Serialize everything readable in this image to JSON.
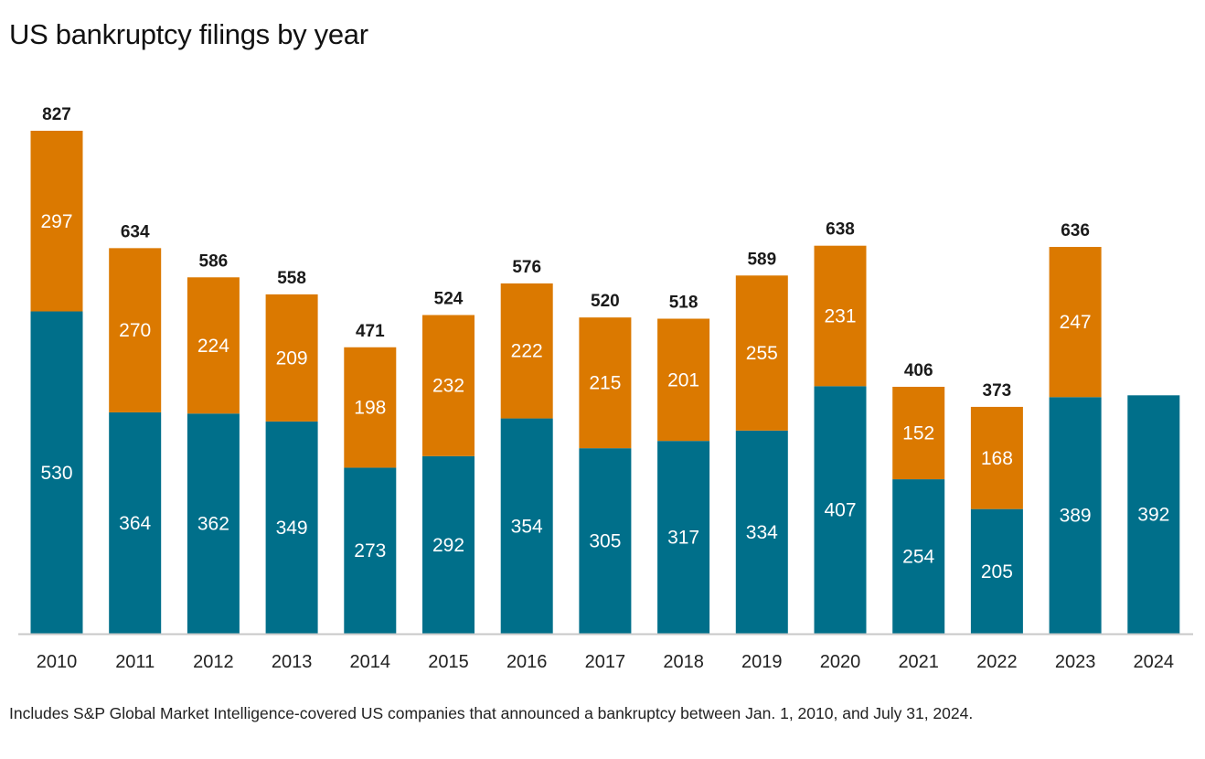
{
  "title": "US bankruptcy filings by year",
  "footnote": "Includes S&P Global Market Intelligence-covered US companies that announced a bankruptcy between Jan. 1, 2010, and July 31, 2024.",
  "chart_data": {
    "type": "bar",
    "stacked": true,
    "title": "US bankruptcy filings by year",
    "xlabel": "",
    "ylabel": "",
    "ylim": [
      0,
      827
    ],
    "grid": false,
    "legend": "none",
    "categories": [
      "2010",
      "2011",
      "2012",
      "2013",
      "2014",
      "2015",
      "2016",
      "2017",
      "2018",
      "2019",
      "2020",
      "2021",
      "2022",
      "2023",
      "2024"
    ],
    "series": [
      {
        "color": "#006F8A",
        "values": [
          530,
          364,
          362,
          349,
          273,
          292,
          354,
          305,
          317,
          334,
          407,
          254,
          205,
          389,
          392
        ]
      },
      {
        "color": "#DB7900",
        "values": [
          297,
          270,
          224,
          209,
          198,
          232,
          222,
          215,
          201,
          255,
          231,
          152,
          168,
          247,
          null
        ]
      }
    ],
    "totals": [
      827,
      634,
      586,
      558,
      471,
      524,
      576,
      520,
      518,
      589,
      638,
      406,
      373,
      636,
      null
    ]
  }
}
